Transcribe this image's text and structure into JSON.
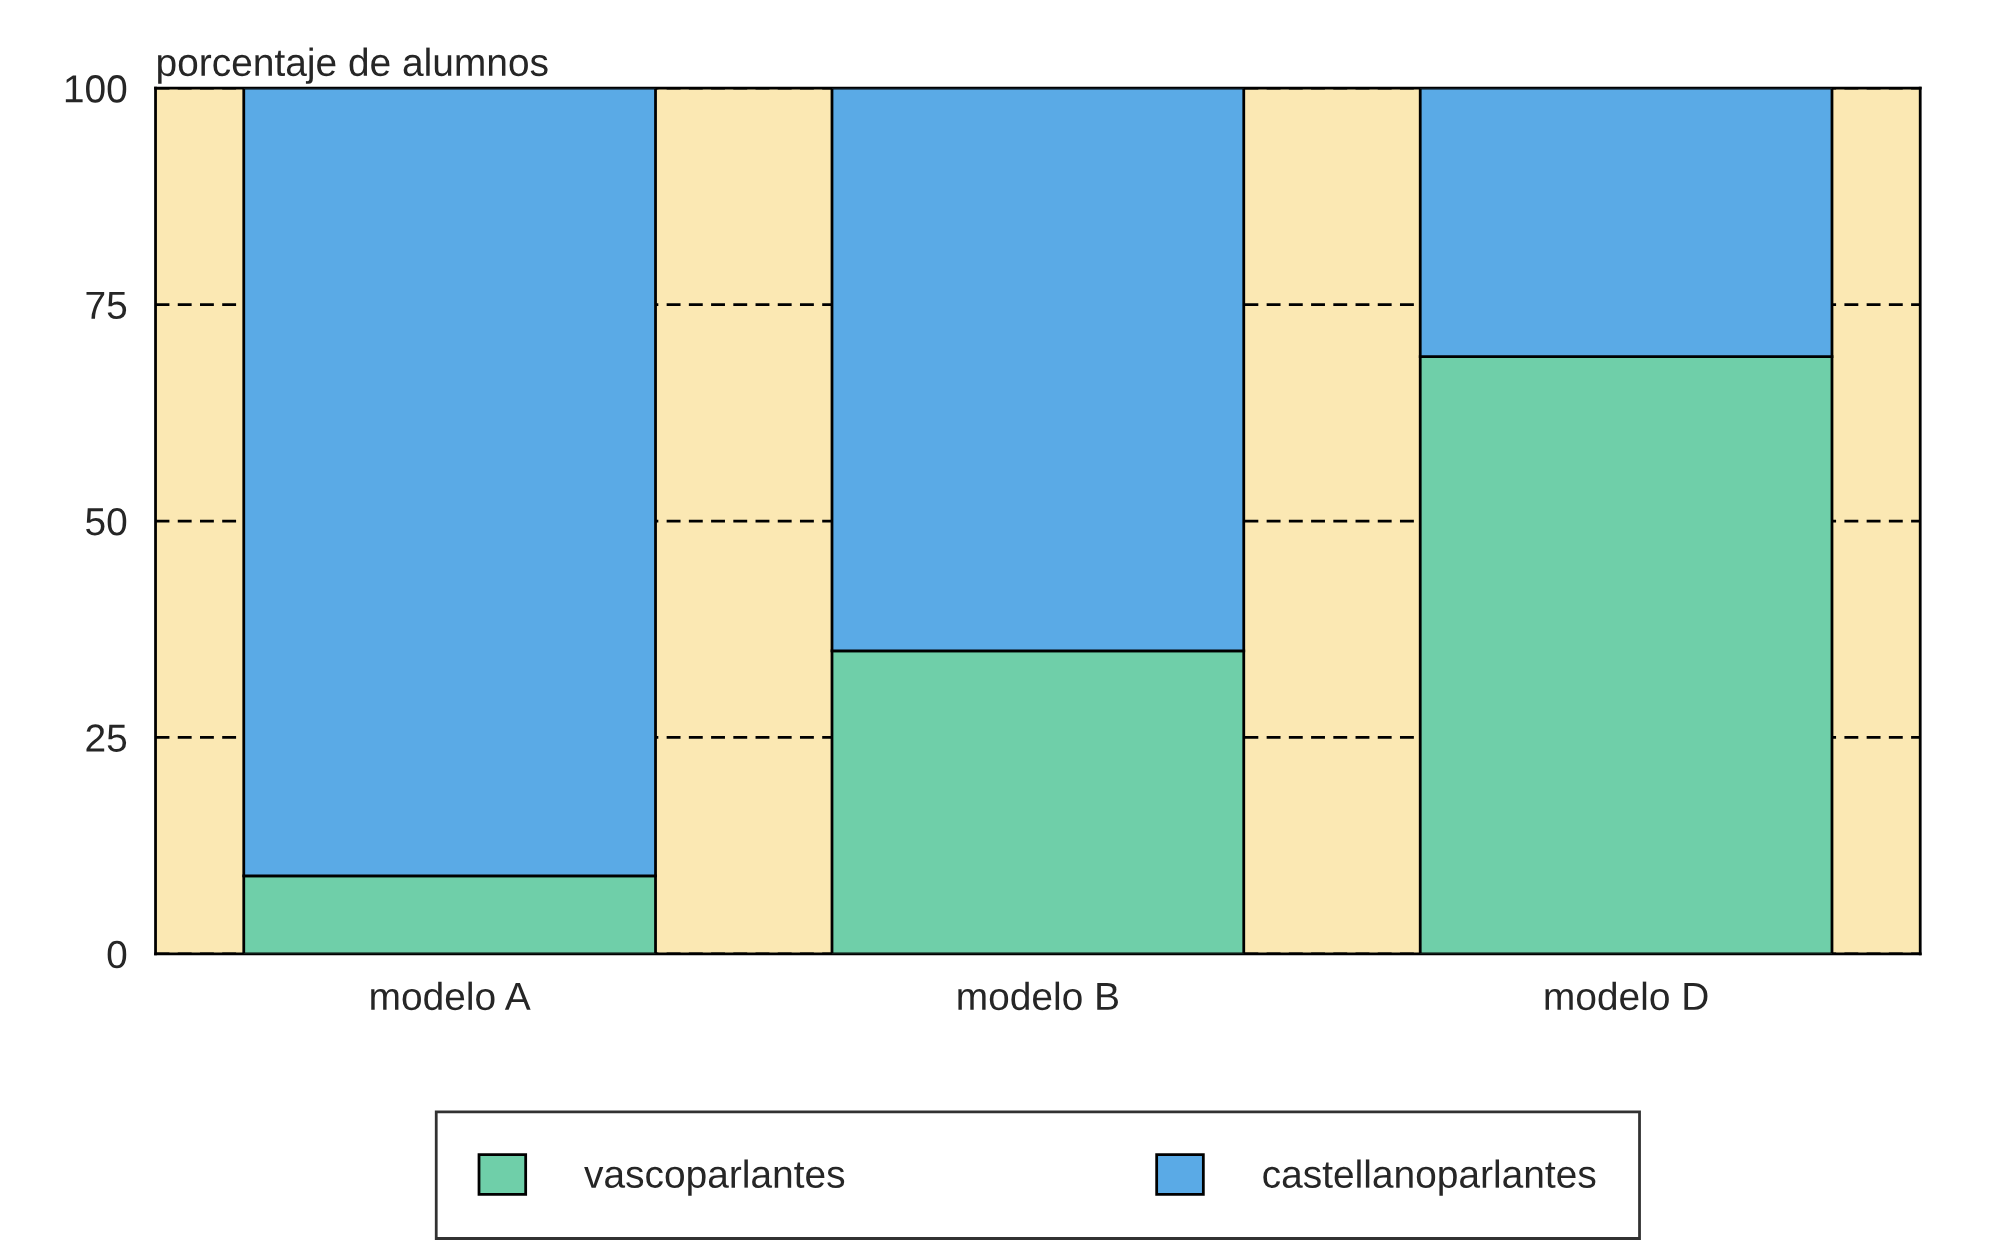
{
  "chart_data": {
    "type": "bar",
    "stacked": true,
    "ylabel": "porcentaje de alumnos",
    "categories": [
      "modelo A",
      "modelo B",
      "modelo D"
    ],
    "series": [
      {
        "name": "vascoparlantes",
        "color": "#6fcfa9",
        "values": [
          9,
          35,
          69
        ]
      },
      {
        "name": "castellanoparlantes",
        "color": "#5aaae6",
        "values": [
          91,
          65,
          31
        ]
      }
    ],
    "ylim": [
      0,
      100
    ],
    "yticks": [
      0,
      25,
      50,
      75,
      100
    ],
    "bands": [
      {
        "axis": "y",
        "from": 0,
        "to": 100,
        "color": "#fbe8b3"
      }
    ],
    "grid": "y",
    "legend": "bottom"
  }
}
